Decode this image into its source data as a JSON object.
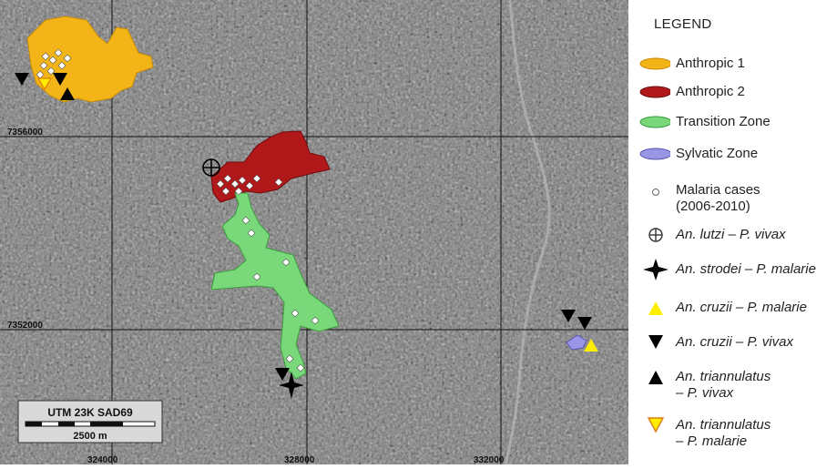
{
  "map": {
    "grid_labels": {
      "northing_top": "7356000",
      "northing_bottom": "7352000",
      "easting_left": "324000",
      "easting_mid": "328000",
      "easting_right": "332000"
    },
    "scalebar": {
      "title": "UTM 23K  SAD69",
      "distance": "2500 m"
    }
  },
  "legend": {
    "title": "LEGEND",
    "items": [
      {
        "label": "Anthropic 1",
        "color": "#f2b417"
      },
      {
        "label": "Anthropic 2",
        "color": "#b0181a"
      },
      {
        "label": "Transition Zone",
        "color": "#79d879"
      },
      {
        "label": "Sylvatic Zone",
        "color": "#9a96e6"
      },
      {
        "label": "Malaria cases",
        "label2": "(2006-2010)"
      },
      {
        "label": "An. lutzi – P. vivax"
      },
      {
        "label": "An. strodei – P. malarie"
      },
      {
        "label": "An. cruzii – P. malarie",
        "color": "#ffee00"
      },
      {
        "label": "An. cruzii – P. vivax"
      },
      {
        "label": "An. triannulatus",
        "label2": "– P. vivax"
      },
      {
        "label": "An. triannulatus",
        "label2": "– P. malarie",
        "color": "#ffee00",
        "stroke": "#e07a10"
      }
    ]
  }
}
